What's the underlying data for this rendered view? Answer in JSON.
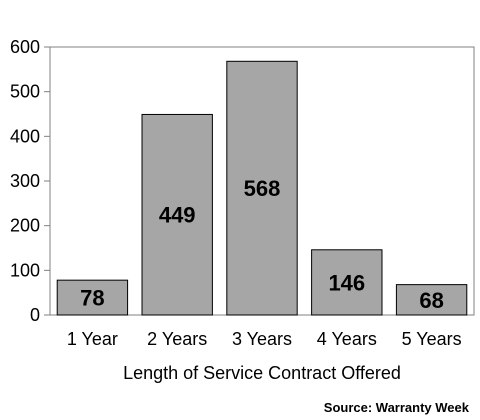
{
  "chart_data": {
    "type": "bar",
    "categories": [
      "1 Year",
      "2 Years",
      "3 Years",
      "4 Years",
      "5 Years"
    ],
    "values": [
      78,
      449,
      568,
      146,
      68
    ],
    "data_labels": [
      "78",
      "449",
      "568",
      "146",
      "68"
    ],
    "title": "",
    "xlabel": "Length of Service Contract Offered",
    "ylabel": "",
    "ylim": [
      0,
      600
    ],
    "yticks": [
      0,
      100,
      200,
      300,
      400,
      500,
      600
    ],
    "ytick_labels": [
      "0",
      "100",
      "200",
      "300",
      "400",
      "500",
      "600"
    ],
    "grid": false,
    "bar_color": "#a6a6a6",
    "bar_edge_color": "#000000",
    "source": "Source: Warranty Week"
  }
}
